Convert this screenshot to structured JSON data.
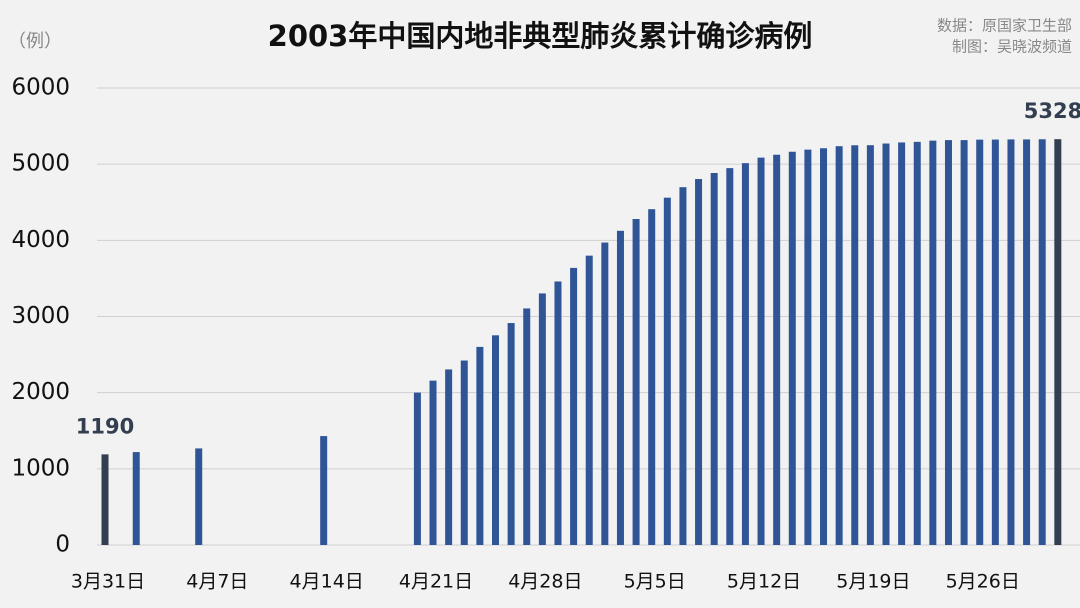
{
  "chart_data": {
    "type": "bar",
    "title": "2003年中国内地非典型肺炎累计确诊病例",
    "y_unit": "（例）",
    "source": "数据：原国家卫生部",
    "credit": "制图：吴晓波频道",
    "categories": [
      "3月31日",
      null,
      null,
      null,
      null,
      null,
      null,
      "4月7日",
      null,
      null,
      null,
      null,
      null,
      null,
      "4月14日",
      null,
      null,
      null,
      null,
      null,
      null,
      "4月21日",
      null,
      null,
      null,
      null,
      null,
      null,
      "4月28日",
      null,
      null,
      null,
      null,
      null,
      null,
      "5月5日",
      null,
      null,
      null,
      null,
      null,
      null,
      "5月12日",
      null,
      null,
      null,
      null,
      null,
      null,
      "5月19日",
      null,
      null,
      null,
      null,
      null,
      null,
      "5月26日",
      null,
      null,
      null,
      null,
      null
    ],
    "values": [
      1190,
      null,
      1220,
      null,
      null,
      null,
      1268,
      null,
      null,
      null,
      null,
      null,
      null,
      null,
      1430,
      null,
      null,
      null,
      null,
      null,
      2001,
      2158,
      2305,
      2422,
      2601,
      2753,
      2914,
      3106,
      3303,
      3460,
      3638,
      3799,
      3971,
      4125,
      4280,
      4409,
      4560,
      4698,
      4805,
      4884,
      4948,
      5013,
      5086,
      5124,
      5163,
      5191,
      5209,
      5236,
      5248,
      5249,
      5271,
      5285,
      5293,
      5309,
      5316,
      5316,
      5322,
      5323,
      5325,
      5325,
      5327,
      5328
    ],
    "color": "#2f5597",
    "highlight_color": "#333f50",
    "ylim": [
      0,
      6000
    ],
    "yticks": [
      0,
      1000,
      2000,
      3000,
      4000,
      5000,
      6000
    ],
    "grid": true
  }
}
